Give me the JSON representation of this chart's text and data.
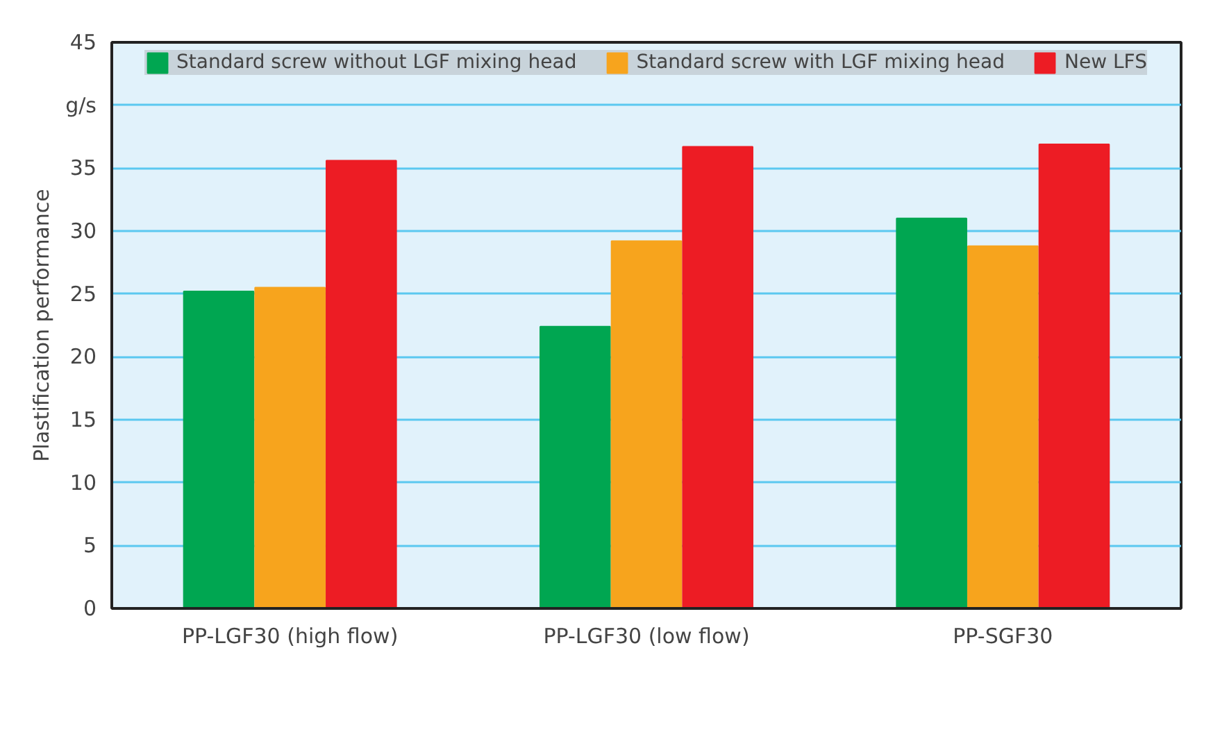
{
  "chart_data": {
    "type": "bar",
    "ylabel": "Plastification performance",
    "categories": [
      "PP-LGF30 (high flow)",
      "PP-LGF30 (low flow)",
      "PP-SGF30"
    ],
    "series": [
      {
        "name": "Standard screw without LGF mixing head",
        "color": "#00a651",
        "values": [
          25.2,
          22.4,
          31.0
        ]
      },
      {
        "name": "Standard screw with LGF mixing head",
        "color": "#f7a41d",
        "values": [
          25.5,
          29.2,
          28.8
        ]
      },
      {
        "name": "New LFS",
        "color": "#ed1c24",
        "values": [
          35.6,
          36.7,
          36.9
        ]
      }
    ],
    "ylim": [
      0,
      45
    ],
    "yticks": [
      0,
      5,
      10,
      15,
      20,
      25,
      30,
      35,
      {
        "value": 40,
        "label": "g/s"
      },
      45
    ],
    "grid": "y",
    "legend": "top"
  }
}
